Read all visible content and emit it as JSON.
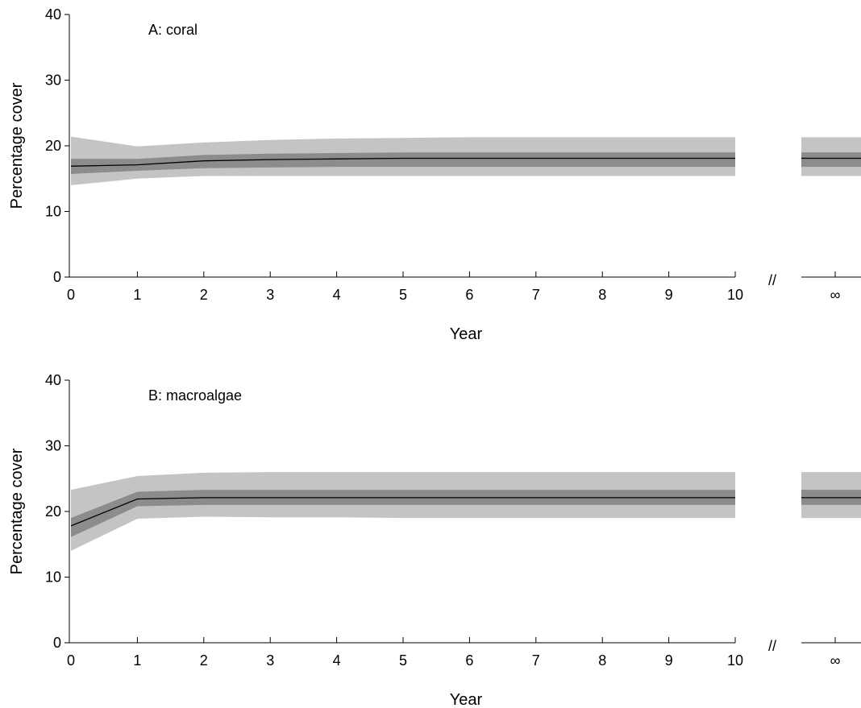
{
  "chart_data": [
    {
      "type": "area",
      "panel_label": "A: coral",
      "xlabel": "Year",
      "ylabel": "Percentage cover",
      "ylim": [
        0,
        40
      ],
      "yticks": [
        0,
        10,
        20,
        30,
        40
      ],
      "xticks": [
        "0",
        "1",
        "2",
        "3",
        "4",
        "5",
        "6",
        "7",
        "8",
        "9",
        "10",
        "∞"
      ],
      "axis_break_marker": "//",
      "x": [
        0,
        1,
        2,
        3,
        4,
        5,
        6,
        7,
        8,
        9,
        10
      ],
      "median": [
        16.9,
        17.1,
        17.7,
        17.9,
        18.0,
        18.1,
        18.1,
        18.1,
        18.1,
        18.1,
        18.1
      ],
      "inner_band": {
        "low": [
          15.7,
          16.2,
          16.6,
          16.7,
          16.8,
          16.8,
          16.8,
          16.8,
          16.8,
          16.8,
          16.8
        ],
        "high": [
          18.0,
          18.0,
          18.6,
          18.8,
          18.9,
          19.0,
          19.0,
          19.0,
          19.0,
          19.0,
          19.0
        ]
      },
      "outer_band": {
        "low": [
          14.0,
          15.0,
          15.4,
          15.4,
          15.4,
          15.4,
          15.4,
          15.4,
          15.4,
          15.4,
          15.4
        ],
        "high": [
          21.4,
          19.9,
          20.5,
          20.9,
          21.1,
          21.2,
          21.3,
          21.3,
          21.3,
          21.3,
          21.3
        ]
      },
      "equilibrium": {
        "median": 18.1,
        "inner": [
          16.8,
          19.0
        ],
        "outer": [
          15.4,
          21.3
        ]
      },
      "colors": {
        "line": "#000000",
        "inner": "#8c8c8c",
        "outer": "#c4c4c4"
      }
    },
    {
      "type": "area",
      "panel_label": "B: macroalgae",
      "xlabel": "Year",
      "ylabel": "Percentage cover",
      "ylim": [
        0,
        40
      ],
      "yticks": [
        0,
        10,
        20,
        30,
        40
      ],
      "xticks": [
        "0",
        "1",
        "2",
        "3",
        "4",
        "5",
        "6",
        "7",
        "8",
        "9",
        "10",
        "∞"
      ],
      "axis_break_marker": "//",
      "x": [
        0,
        1,
        2,
        3,
        4,
        5,
        6,
        7,
        8,
        9,
        10
      ],
      "median": [
        17.8,
        21.9,
        22.1,
        22.1,
        22.1,
        22.1,
        22.1,
        22.1,
        22.1,
        22.1,
        22.1
      ],
      "inner_band": {
        "low": [
          16.1,
          20.8,
          21.0,
          21.0,
          21.0,
          21.0,
          21.0,
          21.0,
          21.0,
          21.0,
          21.0
        ],
        "high": [
          19.0,
          23.0,
          23.3,
          23.3,
          23.3,
          23.3,
          23.3,
          23.3,
          23.3,
          23.3,
          23.3
        ]
      },
      "outer_band": {
        "low": [
          14.0,
          18.9,
          19.2,
          19.1,
          19.1,
          19.0,
          19.0,
          19.0,
          19.0,
          19.0,
          19.0
        ],
        "high": [
          23.3,
          25.4,
          25.9,
          26.0,
          26.0,
          26.0,
          26.0,
          26.0,
          26.0,
          26.0,
          26.0
        ]
      },
      "equilibrium": {
        "median": 22.1,
        "inner": [
          21.0,
          23.3
        ],
        "outer": [
          19.0,
          26.0
        ]
      },
      "colors": {
        "line": "#000000",
        "inner": "#8c8c8c",
        "outer": "#c4c4c4"
      }
    }
  ]
}
